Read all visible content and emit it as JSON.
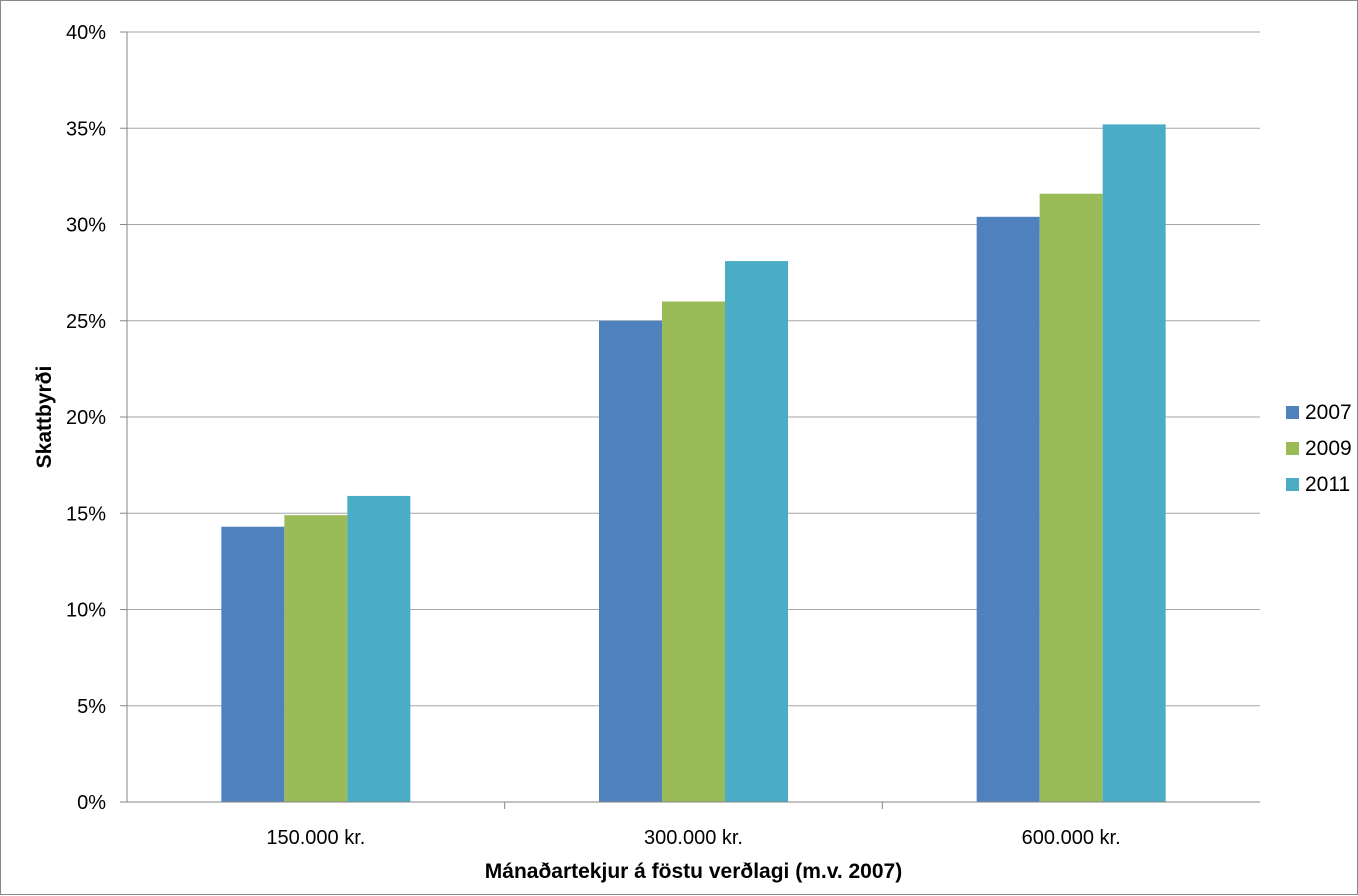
{
  "chart_data": {
    "type": "bar",
    "title": "",
    "xlabel": "Mánaðartekjur á föstu verðlagi (m.v. 2007)",
    "ylabel": "Skattbyrði",
    "categories": [
      "150.000 kr.",
      "300.000 kr.",
      "600.000 kr."
    ],
    "series": [
      {
        "name": "2007",
        "color": "#4F81BD",
        "values": [
          14.3,
          25.0,
          30.4
        ]
      },
      {
        "name": "2009",
        "color": "#9BBB59",
        "values": [
          14.9,
          26.0,
          31.6
        ]
      },
      {
        "name": "2011",
        "color": "#4BACC6",
        "values": [
          15.9,
          28.1,
          35.2
        ]
      }
    ],
    "ylim": [
      0,
      40
    ],
    "yticks": [
      0,
      5,
      10,
      15,
      20,
      25,
      30,
      35,
      40
    ],
    "ytick_labels": [
      "0%",
      "5%",
      "10%",
      "15%",
      "20%",
      "25%",
      "30%",
      "35%",
      "40%"
    ],
    "value_format": "percent",
    "grid": true,
    "gridline_color": "#A6A6A6",
    "legend_position": "right"
  }
}
